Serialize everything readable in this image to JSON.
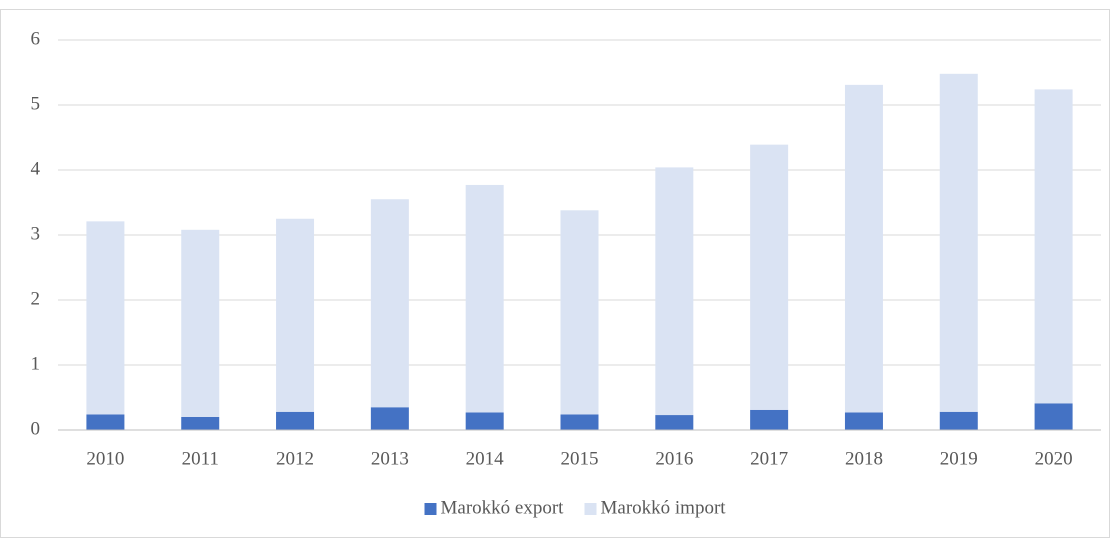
{
  "chart_data": {
    "type": "stacked_bar",
    "categories": [
      "2010",
      "2011",
      "2012",
      "2013",
      "2014",
      "2015",
      "2016",
      "2017",
      "2018",
      "2019",
      "2020"
    ],
    "series": [
      {
        "name": "Marokkó export",
        "color": "#4472c4",
        "values": [
          0.24,
          0.2,
          0.28,
          0.35,
          0.27,
          0.24,
          0.23,
          0.31,
          0.27,
          0.28,
          0.41
        ]
      },
      {
        "name": "Marokkó import",
        "color": "#dae3f3",
        "values": [
          2.97,
          2.88,
          2.97,
          3.2,
          3.5,
          3.14,
          3.81,
          4.08,
          5.04,
          5.2,
          4.83
        ]
      }
    ],
    "ylim": [
      0,
      6
    ],
    "yticks": [
      0,
      1,
      2,
      3,
      4,
      5,
      6
    ],
    "grid": true,
    "legend": "bottom"
  }
}
